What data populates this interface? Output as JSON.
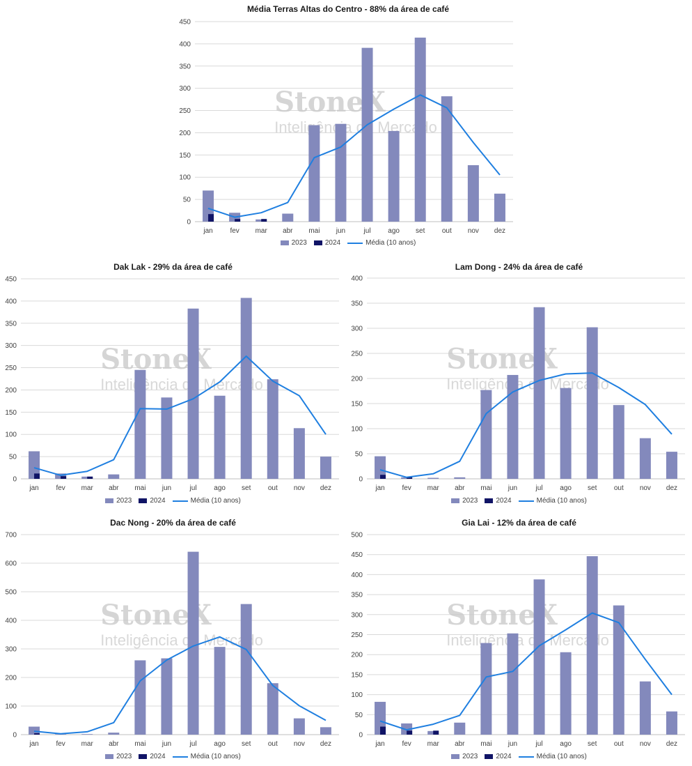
{
  "watermark": {
    "brand": "StoneX",
    "tagline": "Inteligência de Mercado"
  },
  "legend_labels": {
    "s2023": "2023",
    "s2024": "2024",
    "media": "Média (10 anos)"
  },
  "colors": {
    "s2023": "#8389bc",
    "s2024": "#101466",
    "media": "#1f7fe0",
    "grid": "#d9d9d9"
  },
  "chart_data": [
    {
      "type": "bar",
      "title": "Média Terras Altas do Centro - 88% da área de café",
      "categories": [
        "jan",
        "fev",
        "mar",
        "abr",
        "mai",
        "jun",
        "jul",
        "ago",
        "set",
        "out",
        "nov",
        "dez"
      ],
      "ylim": [
        0,
        450
      ],
      "yticks": [
        0,
        50,
        100,
        150,
        200,
        250,
        300,
        350,
        400,
        450
      ],
      "series": [
        {
          "name": "2023",
          "kind": "bar",
          "values": [
            70,
            20,
            5,
            18,
            217,
            220,
            391,
            204,
            414,
            282,
            127,
            63
          ]
        },
        {
          "name": "2024",
          "kind": "bar",
          "values": [
            17,
            6,
            6,
            null,
            null,
            null,
            null,
            null,
            null,
            null,
            null,
            null
          ]
        },
        {
          "name": "Média (10 anos)",
          "kind": "line",
          "values": [
            30,
            10,
            20,
            43,
            144,
            168,
            218,
            253,
            285,
            256,
            178,
            105
          ]
        }
      ],
      "legend": "bottom",
      "grid": true
    },
    {
      "type": "bar",
      "title": "Dak Lak - 29% da área de café",
      "categories": [
        "jan",
        "fev",
        "mar",
        "abr",
        "mai",
        "jun",
        "jul",
        "ago",
        "set",
        "out",
        "nov",
        "dez"
      ],
      "ylim": [
        0,
        450
      ],
      "yticks": [
        0,
        50,
        100,
        150,
        200,
        250,
        300,
        350,
        400,
        450
      ],
      "series": [
        {
          "name": "2023",
          "kind": "bar",
          "values": [
            62,
            12,
            5,
            10,
            245,
            183,
            383,
            187,
            407,
            224,
            114,
            50
          ]
        },
        {
          "name": "2024",
          "kind": "bar",
          "values": [
            12,
            6,
            5,
            null,
            null,
            null,
            null,
            null,
            null,
            null,
            null,
            null
          ]
        },
        {
          "name": "Média (10 anos)",
          "kind": "line",
          "values": [
            25,
            8,
            17,
            43,
            158,
            157,
            180,
            218,
            276,
            220,
            187,
            100
          ]
        }
      ],
      "legend": "bottom",
      "grid": true
    },
    {
      "type": "bar",
      "title": "Lam Dong - 24% da área de café",
      "categories": [
        "jan",
        "fev",
        "mar",
        "abr",
        "mai",
        "jun",
        "jul",
        "ago",
        "set",
        "out",
        "nov",
        "dez"
      ],
      "ylim": [
        0,
        400
      ],
      "yticks": [
        0,
        50,
        100,
        150,
        200,
        250,
        300,
        350,
        400
      ],
      "series": [
        {
          "name": "2023",
          "kind": "bar",
          "values": [
            45,
            3,
            2,
            3,
            177,
            207,
            342,
            181,
            302,
            147,
            81,
            54
          ]
        },
        {
          "name": "2024",
          "kind": "bar",
          "values": [
            8,
            4,
            null,
            null,
            null,
            null,
            null,
            null,
            null,
            null,
            null,
            null
          ]
        },
        {
          "name": "Média (10 anos)",
          "kind": "line",
          "values": [
            18,
            3,
            10,
            35,
            130,
            173,
            196,
            209,
            211,
            182,
            148,
            89
          ]
        }
      ],
      "legend": "bottom",
      "grid": true
    },
    {
      "type": "bar",
      "title": "Dac Nong - 20% da área de café",
      "categories": [
        "jan",
        "fev",
        "mar",
        "abr",
        "mai",
        "jun",
        "jul",
        "ago",
        "set",
        "out",
        "nov",
        "dez"
      ],
      "ylim": [
        0,
        700
      ],
      "yticks": [
        0,
        100,
        200,
        300,
        400,
        500,
        600,
        700
      ],
      "series": [
        {
          "name": "2023",
          "kind": "bar",
          "values": [
            28,
            2,
            2,
            7,
            260,
            267,
            640,
            307,
            457,
            180,
            57,
            26
          ]
        },
        {
          "name": "2024",
          "kind": "bar",
          "values": [
            5,
            null,
            null,
            null,
            null,
            null,
            null,
            null,
            null,
            null,
            null,
            null
          ]
        },
        {
          "name": "Média (10 anos)",
          "kind": "line",
          "values": [
            12,
            3,
            10,
            42,
            188,
            261,
            310,
            342,
            298,
            172,
            101,
            50
          ]
        }
      ],
      "legend": "bottom",
      "grid": true
    },
    {
      "type": "bar",
      "title": "Gia Lai - 12% da área de café",
      "categories": [
        "jan",
        "fev",
        "mar",
        "abr",
        "mai",
        "jun",
        "jul",
        "ago",
        "set",
        "out",
        "nov",
        "dez"
      ],
      "ylim": [
        0,
        500
      ],
      "yticks": [
        0,
        50,
        100,
        150,
        200,
        250,
        300,
        350,
        400,
        450,
        500
      ],
      "series": [
        {
          "name": "2023",
          "kind": "bar",
          "values": [
            82,
            28,
            9,
            30,
            229,
            253,
            388,
            206,
            446,
            323,
            133,
            58
          ]
        },
        {
          "name": "2024",
          "kind": "bar",
          "values": [
            20,
            10,
            10,
            null,
            null,
            null,
            null,
            null,
            null,
            null,
            null,
            null
          ]
        },
        {
          "name": "Média (10 anos)",
          "kind": "line",
          "values": [
            34,
            12,
            26,
            48,
            144,
            158,
            222,
            262,
            304,
            280,
            188,
            100
          ]
        }
      ],
      "legend": "bottom",
      "grid": true
    }
  ]
}
